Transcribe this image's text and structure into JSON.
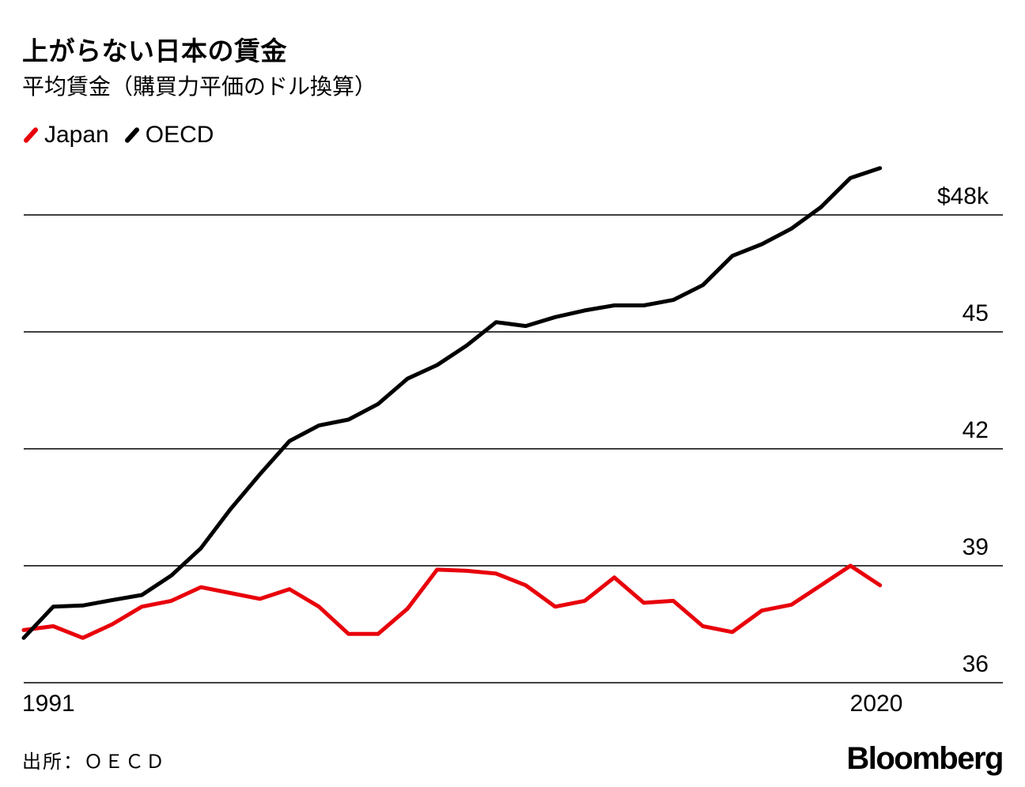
{
  "chart_data": {
    "type": "line",
    "title": "上がらない日本の賃金",
    "subtitle": "平均賃金（購買力平価のドル換算）",
    "x": [
      1991,
      1992,
      1993,
      1994,
      1995,
      1996,
      1997,
      1998,
      1999,
      2000,
      2001,
      2002,
      2003,
      2004,
      2005,
      2006,
      2007,
      2008,
      2009,
      2010,
      2011,
      2012,
      2013,
      2014,
      2015,
      2016,
      2017,
      2018,
      2019,
      2020,
      2021
    ],
    "series": [
      {
        "name": "Japan",
        "color": "#e8000b",
        "values": [
          37.35,
          37.45,
          37.15,
          37.5,
          37.95,
          38.1,
          38.45,
          38.3,
          38.15,
          38.4,
          37.95,
          37.25,
          37.25,
          37.9,
          38.9,
          38.87,
          38.8,
          38.5,
          37.95,
          38.1,
          38.7,
          38.05,
          38.1,
          37.45,
          37.3,
          37.85,
          38.0,
          38.5,
          39.0,
          38.5,
          null
        ]
      },
      {
        "name": "OECD",
        "color": "#000000",
        "values": [
          37.15,
          37.95,
          37.98,
          38.12,
          38.25,
          38.75,
          39.45,
          40.45,
          41.35,
          42.2,
          42.6,
          42.75,
          43.15,
          43.8,
          44.15,
          44.65,
          45.25,
          45.15,
          45.38,
          45.55,
          45.68,
          45.68,
          45.82,
          46.2,
          46.95,
          47.25,
          47.65,
          48.2,
          48.95,
          49.2,
          null
        ]
      }
    ],
    "y_ticks": [
      "36",
      "39",
      "42",
      "45",
      "$48k"
    ],
    "y_tick_values": [
      36,
      39,
      42,
      45,
      48
    ],
    "x_tick_labels": [
      "1991",
      "2020"
    ],
    "ylim": [
      36,
      49.5
    ],
    "grid": "horizontal",
    "legend": "top-left"
  },
  "source": "出所：ＯＥＣＤ",
  "brand": "Bloomberg"
}
